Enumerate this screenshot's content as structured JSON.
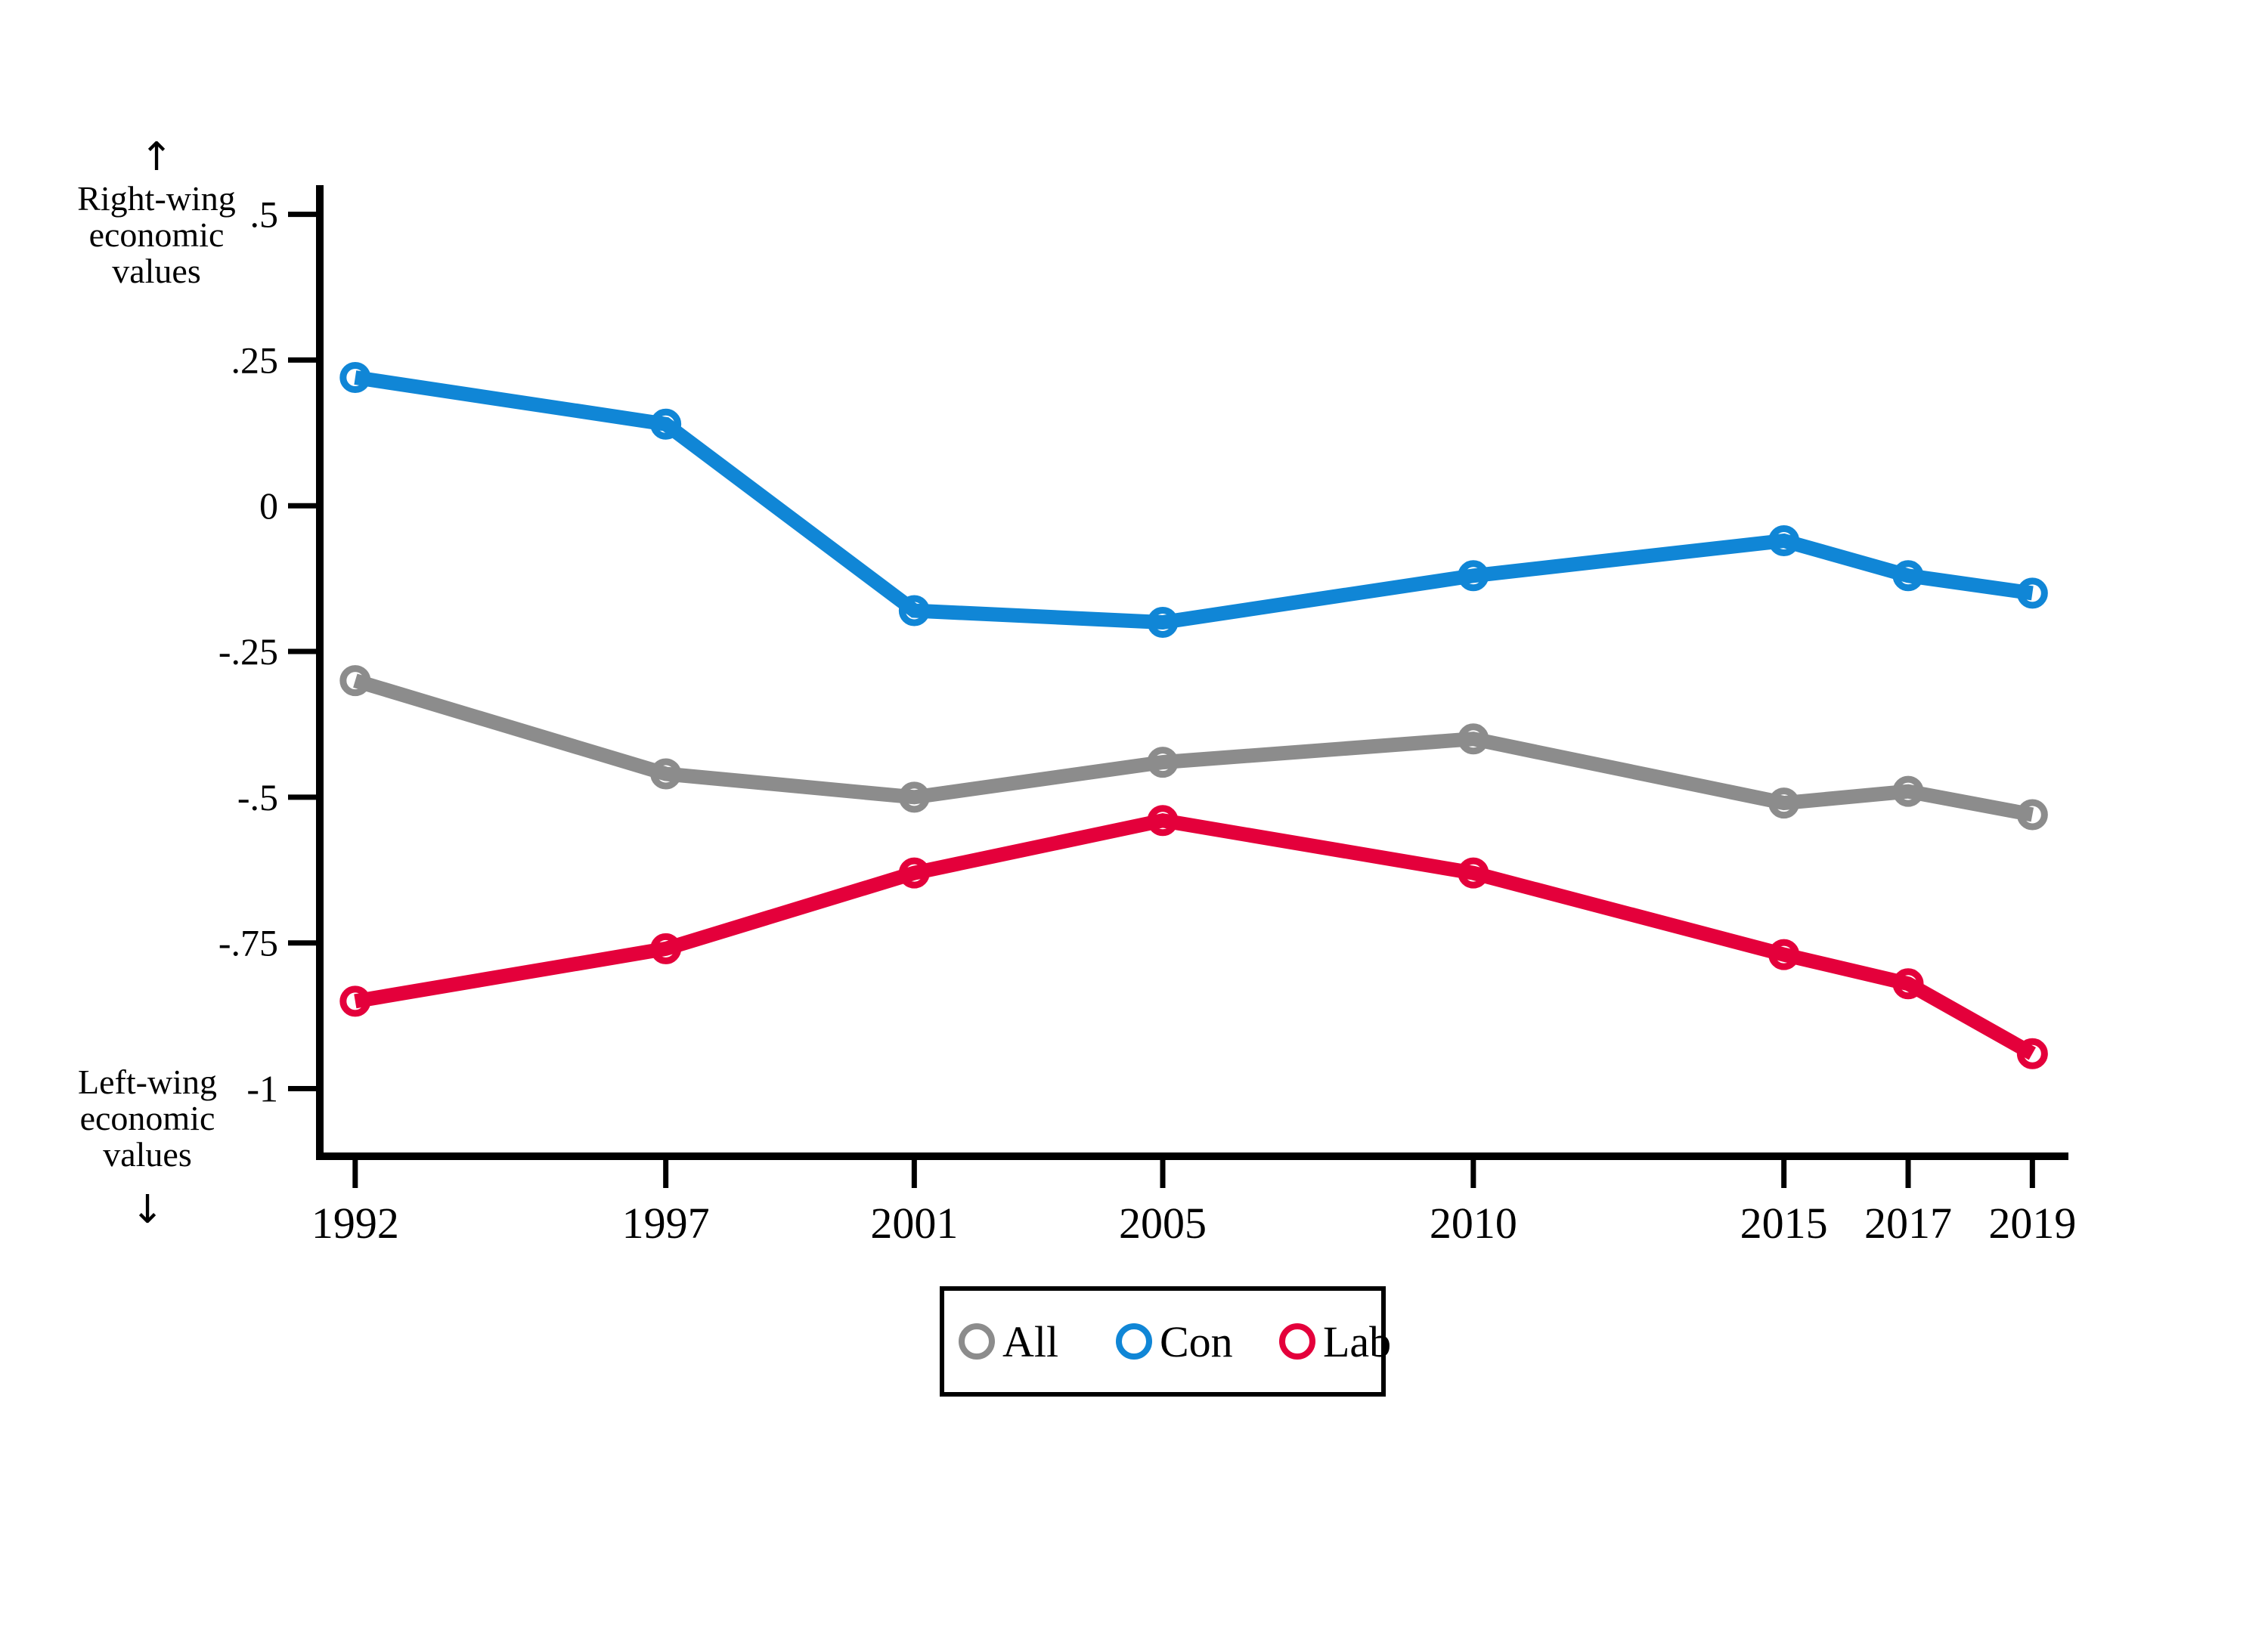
{
  "chart_data": {
    "type": "line",
    "title": "",
    "xlabel": "",
    "ylabel": "",
    "grid": false,
    "x": [
      1992,
      1997,
      2001,
      2005,
      2010,
      2015,
      2017,
      2019
    ],
    "x_tick_labels": [
      "1992",
      "1997",
      "2001",
      "2005",
      "2010",
      "2015",
      "2017",
      "2019"
    ],
    "y_ticks": [
      {
        "label": ".5",
        "value": 0.5
      },
      {
        "label": ".25",
        "value": 0.25
      },
      {
        "label": "0",
        "value": 0
      },
      {
        "label": "-.25",
        "value": -0.25
      },
      {
        "label": "-.5",
        "value": -0.5
      },
      {
        "label": "-.75",
        "value": -0.75
      },
      {
        "label": "-1",
        "value": -1
      }
    ],
    "xlim": [
      1991.43,
      2019.58
    ],
    "ylim": [
      -1.116,
      0.55
    ],
    "series": [
      {
        "name": "All",
        "color": "#8c8c8c",
        "values": [
          -0.3,
          -0.46,
          -0.5,
          -0.44,
          -0.4,
          -0.51,
          -0.49,
          -0.53
        ]
      },
      {
        "name": "Con",
        "color": "#1086d6",
        "values": [
          0.22,
          0.14,
          -0.18,
          -0.2,
          -0.12,
          -0.06,
          -0.12,
          -0.15
        ]
      },
      {
        "name": "Lab",
        "color": "#e4003b",
        "values": [
          -0.85,
          -0.76,
          -0.63,
          -0.54,
          -0.63,
          -0.77,
          -0.82,
          -0.94
        ]
      }
    ],
    "legend": {
      "position": "bottom-center",
      "entries": [
        "All",
        "Con",
        "Lab"
      ]
    },
    "annotations": {
      "top": {
        "arrow": "↑",
        "line1": "Right-wing",
        "line2": "economic",
        "line3": "values"
      },
      "bottom": {
        "line1": "Left-wing",
        "line2": "economic",
        "line3": "values",
        "arrow": "↓"
      }
    }
  }
}
